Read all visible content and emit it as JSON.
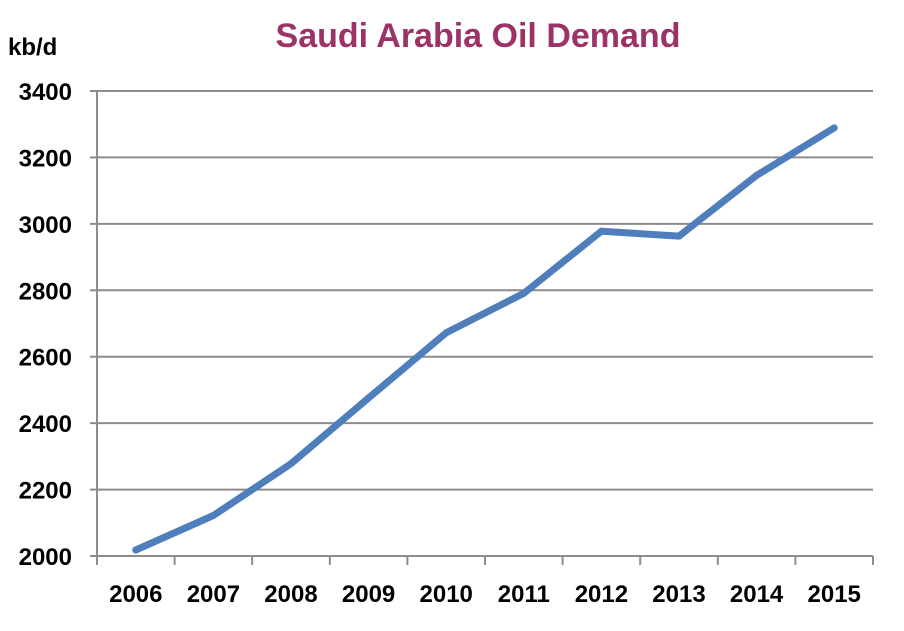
{
  "chart_data": {
    "type": "line",
    "title": "Saudi Arabia Oil Demand",
    "ylabel": "kb/d",
    "xlabel": "",
    "categories": [
      "2006",
      "2007",
      "2008",
      "2009",
      "2010",
      "2011",
      "2012",
      "2013",
      "2014",
      "2015"
    ],
    "series": [
      {
        "values": [
          2018,
          2122,
          2278,
          2476,
          2672,
          2791,
          2978,
          2963,
          3146,
          3289
        ]
      }
    ],
    "ylim": [
      2000,
      3400
    ],
    "yticks": [
      "2000",
      "2200",
      "2400",
      "2600",
      "2800",
      "3000",
      "3200",
      "3400"
    ],
    "grid": true,
    "series_color": "#4f7ebc",
    "title_color": "#9b3368"
  }
}
